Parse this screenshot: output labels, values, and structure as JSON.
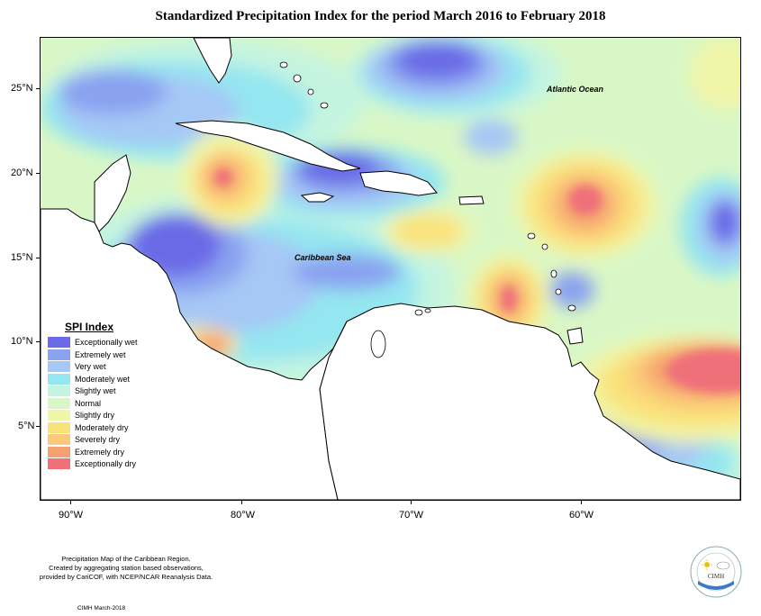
{
  "title": "Standardized Precipitation Index for the period March 2016 to February 2018",
  "map": {
    "ocean_labels": {
      "atlantic": "Atlantic Ocean",
      "caribbean": "Caribbean Sea"
    },
    "lat_ticks": [
      "25°N",
      "20°N",
      "15°N",
      "10°N",
      "5°N"
    ],
    "lon_ticks": [
      "90°W",
      "80°W",
      "70°W",
      "60°W"
    ]
  },
  "legend": {
    "title": "SPI Index",
    "items": [
      {
        "label": "Exceptionally wet",
        "color": "#6b6be6"
      },
      {
        "label": "Extremely wet",
        "color": "#8aa2f0"
      },
      {
        "label": "Very wet",
        "color": "#a6c8f5"
      },
      {
        "label": "Moderately wet",
        "color": "#94e6f0"
      },
      {
        "label": "Slightly wet",
        "color": "#c4f4e0"
      },
      {
        "label": "Normal",
        "color": "#d9f7c6"
      },
      {
        "label": "Slightly dry",
        "color": "#f0f5a8"
      },
      {
        "label": "Moderately dry",
        "color": "#fae27a"
      },
      {
        "label": "Severely dry",
        "color": "#fbc979"
      },
      {
        "label": "Extremely dry",
        "color": "#f5a070"
      },
      {
        "label": "Exceptionally dry",
        "color": "#f0707a"
      }
    ]
  },
  "footer": {
    "lines": [
      "Precipitation Map of the Caribbean Region.",
      "Created by aggregating station based observations,",
      "provided by CariCOF, with NCEP/NCAR Reanalysis Data."
    ],
    "credit": "CIMH March-2018"
  },
  "logo": {
    "text": "CIMH"
  }
}
